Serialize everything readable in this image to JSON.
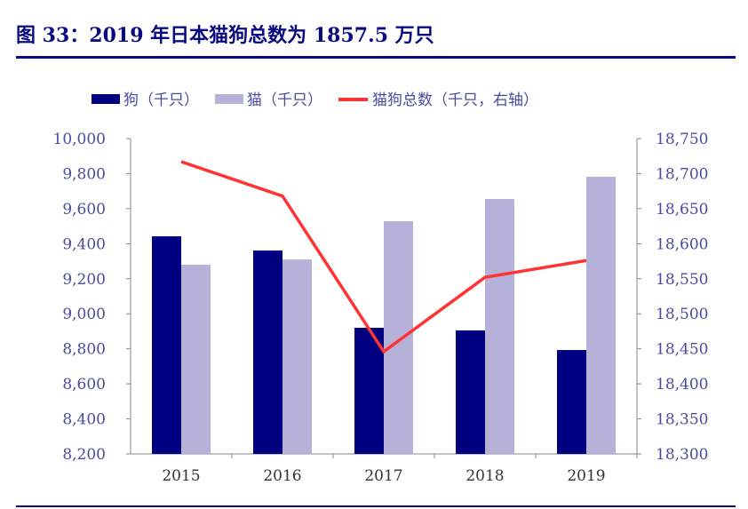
{
  "title": "图 33：2019 年日本猫狗总数为 1857.5 万只",
  "chart_data": {
    "type": "bar+line",
    "categories": [
      "2015",
      "2016",
      "2017",
      "2018",
      "2019"
    ],
    "series": [
      {
        "name": "狗（千只）",
        "type": "bar",
        "axis": "left",
        "color": "#000080",
        "values": [
          9442,
          9361,
          8920,
          8905,
          8793
        ]
      },
      {
        "name": "猫（千只）",
        "type": "bar",
        "axis": "left",
        "color": "#b5b1d9",
        "values": [
          9280,
          9310,
          9528,
          9655,
          9782
        ]
      },
      {
        "name": "猫狗总数（千只，右轴）",
        "type": "line",
        "axis": "right",
        "color": "#ff3333",
        "values": [
          18717,
          18668,
          18446,
          18552,
          18576
        ]
      }
    ],
    "ylim_left": [
      8200,
      10000
    ],
    "yticks_left": [
      "8,200",
      "8,400",
      "8,600",
      "8,800",
      "9,000",
      "9,200",
      "9,400",
      "9,600",
      "9,800",
      "10,000"
    ],
    "ylim_right": [
      18300,
      18750
    ],
    "yticks_right": [
      "18,300",
      "18,350",
      "18,400",
      "18,450",
      "18,500",
      "18,550",
      "18,600",
      "18,650",
      "18,700",
      "18,750"
    ],
    "legend": "top",
    "grid": false
  }
}
